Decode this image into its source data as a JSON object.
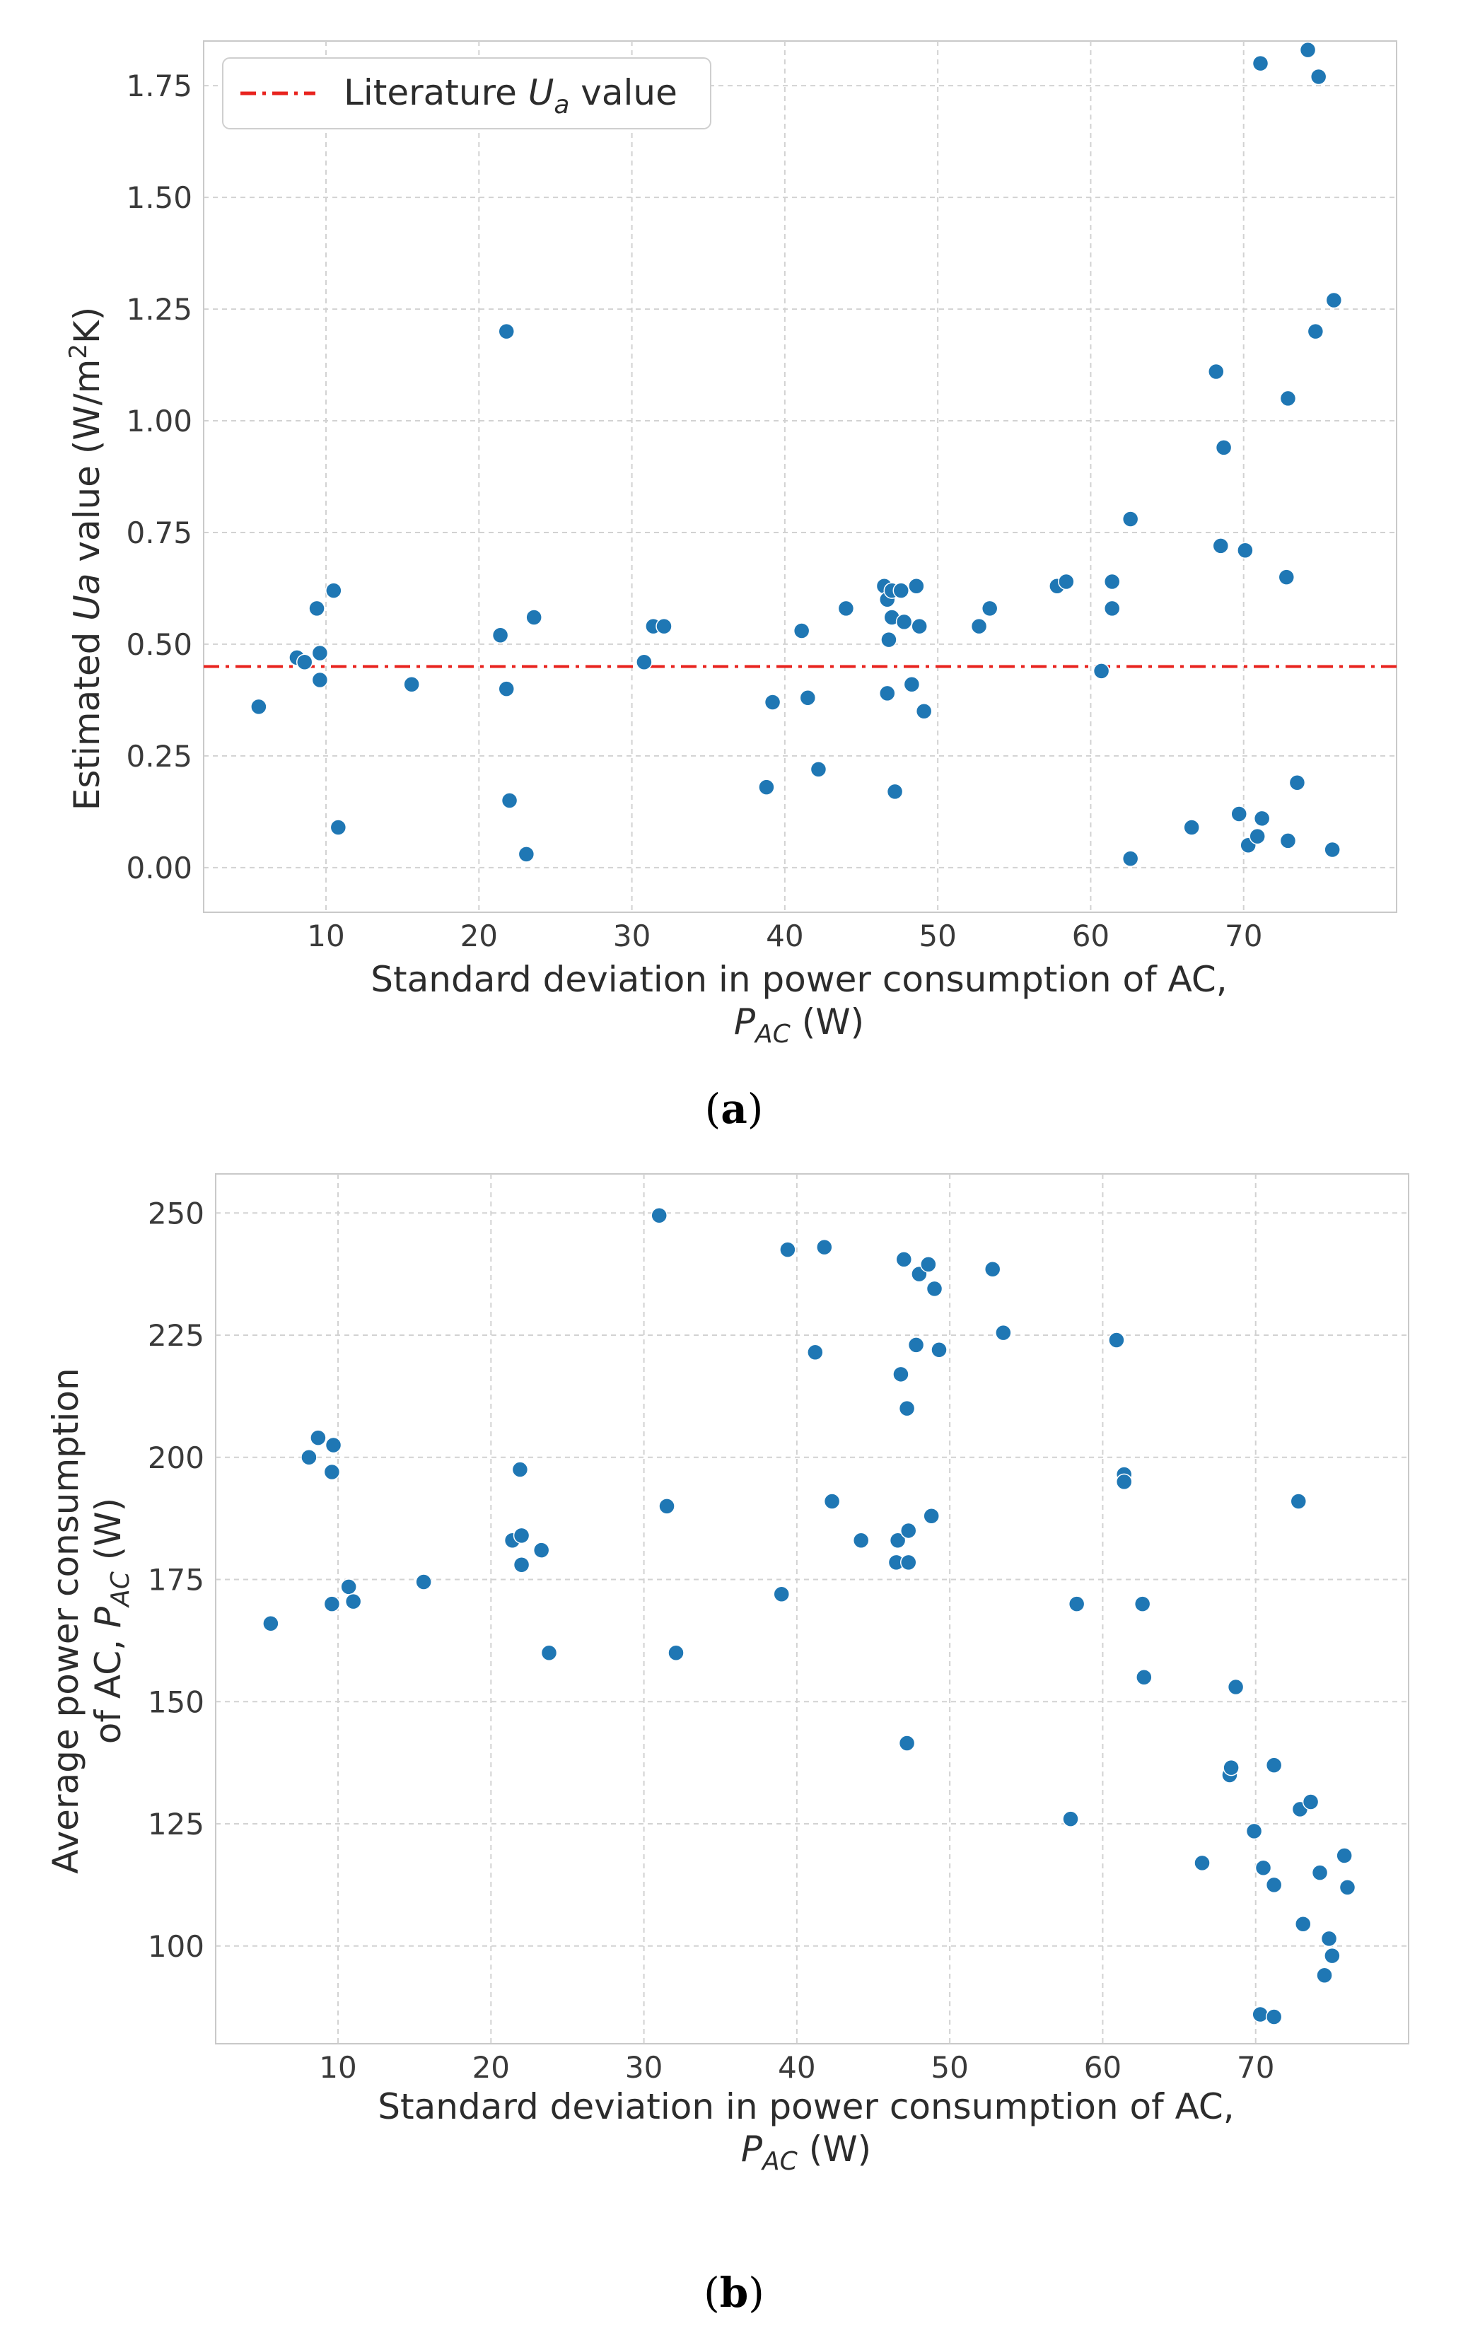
{
  "chart_data": [
    {
      "type": "scatter",
      "panel_label": "a",
      "xlabel_line1": "Standard deviation in power consumption of AC,",
      "xlabel_line2": {
        "symbol": "P",
        "subscript": "AC",
        "unit": "(W)"
      },
      "ylabel": {
        "prefix": "Estimated ",
        "symbol": "Ua",
        "suffix": " value (W/m",
        "sup": "2",
        "end": "K)"
      },
      "xlim": [
        2,
        80
      ],
      "ylim": [
        -0.1,
        1.85
      ],
      "xticks": [
        10,
        20,
        30,
        40,
        50,
        60,
        70
      ],
      "yticks": [
        "0.00",
        "0.25",
        "0.50",
        "0.75",
        "1.00",
        "1.25",
        "1.50",
        "1.75"
      ],
      "grid": true,
      "marker_color": "#1f77b4",
      "reference_line": {
        "y": 0.45,
        "color": "#e8231e",
        "style": "dashdot"
      },
      "legend": {
        "position": "top-left",
        "label_prefix": "Literature ",
        "label_symbol": "U",
        "label_subscript": "a",
        "label_suffix": " value"
      },
      "points": [
        [
          5.6,
          0.36
        ],
        [
          8.1,
          0.47
        ],
        [
          8.6,
          0.46
        ],
        [
          9.4,
          0.58
        ],
        [
          9.6,
          0.48
        ],
        [
          9.6,
          0.42
        ],
        [
          10.5,
          0.62
        ],
        [
          10.8,
          0.09
        ],
        [
          15.6,
          0.41
        ],
        [
          21.4,
          0.52
        ],
        [
          21.8,
          1.2
        ],
        [
          21.8,
          0.4
        ],
        [
          22.0,
          0.15
        ],
        [
          23.1,
          0.03
        ],
        [
          23.6,
          0.56
        ],
        [
          30.8,
          0.46
        ],
        [
          31.4,
          0.54
        ],
        [
          32.1,
          0.54
        ],
        [
          39.2,
          0.37
        ],
        [
          38.8,
          0.18
        ],
        [
          41.1,
          0.53
        ],
        [
          41.5,
          0.38
        ],
        [
          42.2,
          0.22
        ],
        [
          44.0,
          0.58
        ],
        [
          46.5,
          0.63
        ],
        [
          46.7,
          0.6
        ],
        [
          46.7,
          0.39
        ],
        [
          46.8,
          0.51
        ],
        [
          47.0,
          0.62
        ],
        [
          47.0,
          0.56
        ],
        [
          47.2,
          0.17
        ],
        [
          47.6,
          0.62
        ],
        [
          47.8,
          0.55
        ],
        [
          48.3,
          0.41
        ],
        [
          48.6,
          0.63
        ],
        [
          48.8,
          0.54
        ],
        [
          49.1,
          0.35
        ],
        [
          52.7,
          0.54
        ],
        [
          53.4,
          0.58
        ],
        [
          57.8,
          0.63
        ],
        [
          58.4,
          0.64
        ],
        [
          60.7,
          0.44
        ],
        [
          61.4,
          0.64
        ],
        [
          61.4,
          0.58
        ],
        [
          62.6,
          0.78
        ],
        [
          62.6,
          0.02
        ],
        [
          66.6,
          0.09
        ],
        [
          68.2,
          1.11
        ],
        [
          68.5,
          0.72
        ],
        [
          68.7,
          0.94
        ],
        [
          69.7,
          0.12
        ],
        [
          70.1,
          0.71
        ],
        [
          70.3,
          0.05
        ],
        [
          70.9,
          0.07
        ],
        [
          71.1,
          1.8
        ],
        [
          71.2,
          0.11
        ],
        [
          72.8,
          0.65
        ],
        [
          72.9,
          1.05
        ],
        [
          72.9,
          0.06
        ],
        [
          73.5,
          0.19
        ],
        [
          74.2,
          1.83
        ],
        [
          74.7,
          1.2
        ],
        [
          74.9,
          1.77
        ],
        [
          75.8,
          0.04
        ],
        [
          75.9,
          1.27
        ]
      ]
    },
    {
      "type": "scatter",
      "panel_label": "b",
      "xlabel_line1": "Standard deviation in power consumption of AC,",
      "xlabel_line2": {
        "symbol": "P",
        "subscript": "AC",
        "unit": "(W)"
      },
      "ylabel_line1": "Average power consumption",
      "ylabel_line2": {
        "prefix": "of AC, ",
        "symbol": "P",
        "subscript": "AC",
        "unit": " (W)"
      },
      "xlim": [
        2,
        80
      ],
      "ylim": [
        80,
        258
      ],
      "xticks": [
        10,
        20,
        30,
        40,
        50,
        60,
        70
      ],
      "yticks": [
        "100",
        "125",
        "150",
        "175",
        "200",
        "225",
        "250"
      ],
      "grid": true,
      "marker_color": "#1f77b4",
      "points": [
        [
          5.6,
          166
        ],
        [
          8.1,
          200
        ],
        [
          8.7,
          204
        ],
        [
          9.6,
          197
        ],
        [
          9.6,
          170
        ],
        [
          9.7,
          202.5
        ],
        [
          10.7,
          173.5
        ],
        [
          11.0,
          170.5
        ],
        [
          15.6,
          174.5
        ],
        [
          21.4,
          183
        ],
        [
          21.9,
          197.5
        ],
        [
          22.0,
          184
        ],
        [
          22.0,
          178
        ],
        [
          23.3,
          181
        ],
        [
          23.8,
          160
        ],
        [
          31.0,
          249.5
        ],
        [
          31.5,
          190
        ],
        [
          32.1,
          160
        ],
        [
          39.0,
          172
        ],
        [
          39.4,
          242.5
        ],
        [
          41.2,
          221.5
        ],
        [
          41.8,
          243
        ],
        [
          42.3,
          191
        ],
        [
          44.2,
          183
        ],
        [
          46.5,
          178.5
        ],
        [
          46.6,
          183
        ],
        [
          46.8,
          217
        ],
        [
          47.0,
          240.5
        ],
        [
          47.2,
          141.5
        ],
        [
          47.2,
          210
        ],
        [
          47.3,
          178.5
        ],
        [
          47.3,
          185
        ],
        [
          47.8,
          223
        ],
        [
          48.0,
          237.5
        ],
        [
          48.6,
          239.5
        ],
        [
          48.8,
          188
        ],
        [
          49.0,
          234.5
        ],
        [
          49.3,
          222
        ],
        [
          52.8,
          238.5
        ],
        [
          53.5,
          225.5
        ],
        [
          57.9,
          126
        ],
        [
          58.3,
          170
        ],
        [
          60.9,
          224
        ],
        [
          61.4,
          196.5
        ],
        [
          61.4,
          195
        ],
        [
          62.6,
          170
        ],
        [
          62.7,
          155
        ],
        [
          66.5,
          117
        ],
        [
          68.3,
          135
        ],
        [
          68.4,
          136.5
        ],
        [
          68.7,
          153
        ],
        [
          69.9,
          123.5
        ],
        [
          70.3,
          86
        ],
        [
          70.5,
          116
        ],
        [
          71.2,
          137
        ],
        [
          71.2,
          85.5
        ],
        [
          71.2,
          112.5
        ],
        [
          72.8,
          191
        ],
        [
          72.9,
          128
        ],
        [
          73.1,
          104.5
        ],
        [
          73.6,
          129.5
        ],
        [
          74.2,
          115
        ],
        [
          74.5,
          94
        ],
        [
          74.8,
          101.5
        ],
        [
          75.0,
          98
        ],
        [
          75.8,
          118.5
        ],
        [
          76.0,
          112
        ]
      ]
    }
  ]
}
